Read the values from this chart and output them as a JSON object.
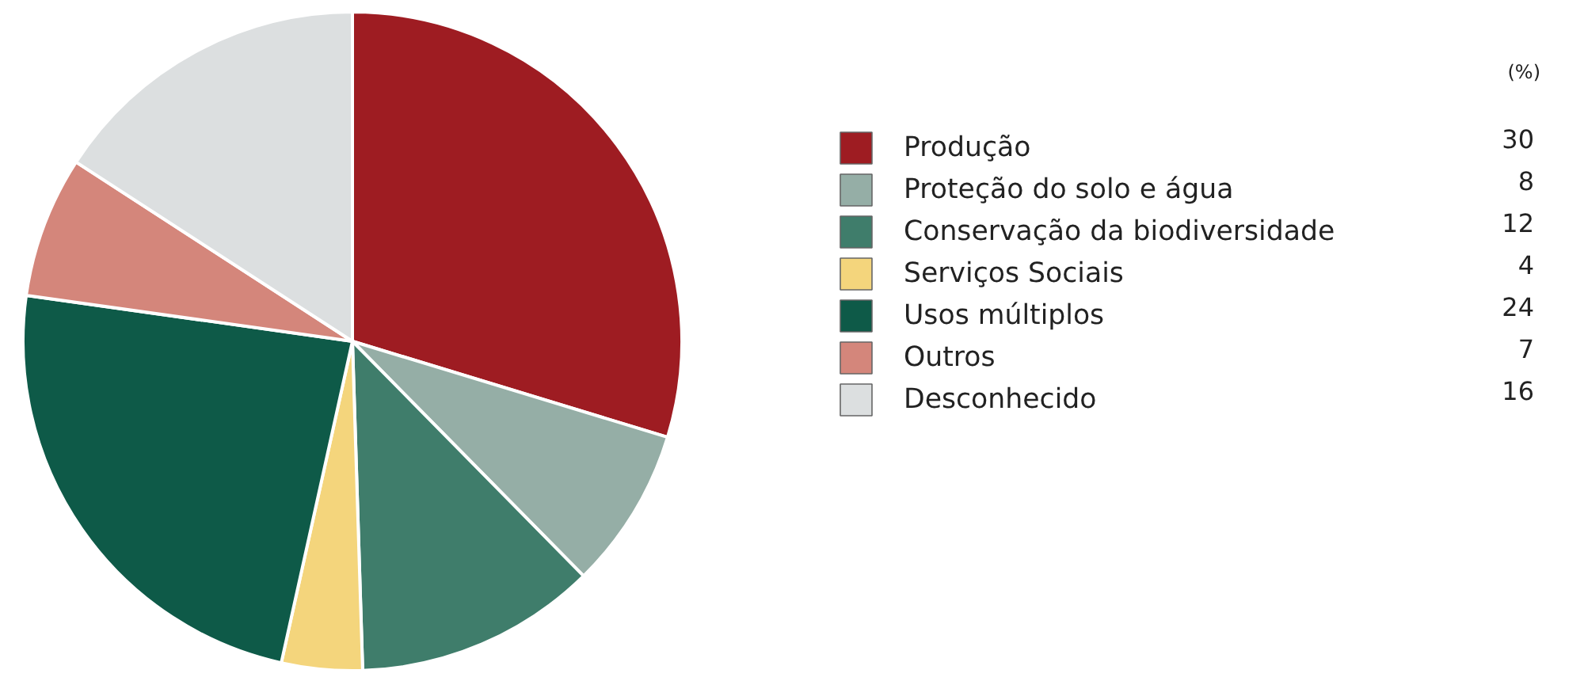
{
  "chart_data": {
    "type": "pie",
    "categories": [
      "Produção",
      "Proteção do solo e água",
      "Conservação da biodiversidade",
      "Serviços Sociais",
      "Usos múltiplos",
      "Outros",
      "Desconhecido"
    ],
    "values": [
      30,
      8,
      12,
      4,
      24,
      7,
      16
    ],
    "colors": [
      "#9e1c22",
      "#95aea6",
      "#3f7d6b",
      "#f4d57c",
      "#0e5a48",
      "#d4867b",
      "#dcdfe0"
    ],
    "data_labels": true,
    "legend": "right",
    "annotations": [
      "(%)"
    ]
  }
}
